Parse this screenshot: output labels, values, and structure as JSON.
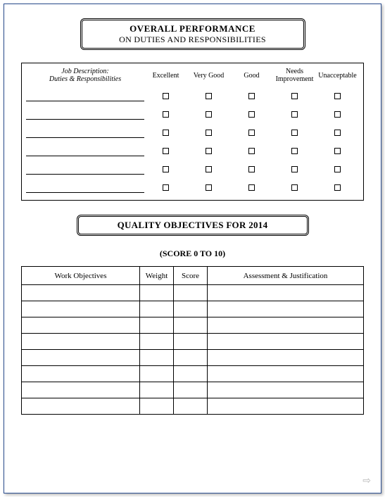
{
  "banner1": {
    "line1": "OVERALL PERFORMANCE",
    "line2": "ON DUTIES AND RESPONSIBILITIES"
  },
  "perf_table": {
    "desc_header_l1": "Job Description:",
    "desc_header_l2": "Duties & Responsibilities",
    "ratings": [
      "Excellent",
      "Very Good",
      "Good",
      "Needs Improvement",
      "Unacceptable"
    ],
    "row_count": 6
  },
  "banner2": {
    "line1": "QUALITY OBJECTIVES FOR 2014"
  },
  "score_label": "(SCORE 0 TO 10)",
  "obj_table": {
    "headers": [
      "Work Objectives",
      "Weight",
      "Score",
      "Assessment & Justification"
    ],
    "row_count": 8
  },
  "colors": {
    "page_border": "#2a4d8f",
    "line": "#000000",
    "arrow": "#b8b8b8"
  }
}
